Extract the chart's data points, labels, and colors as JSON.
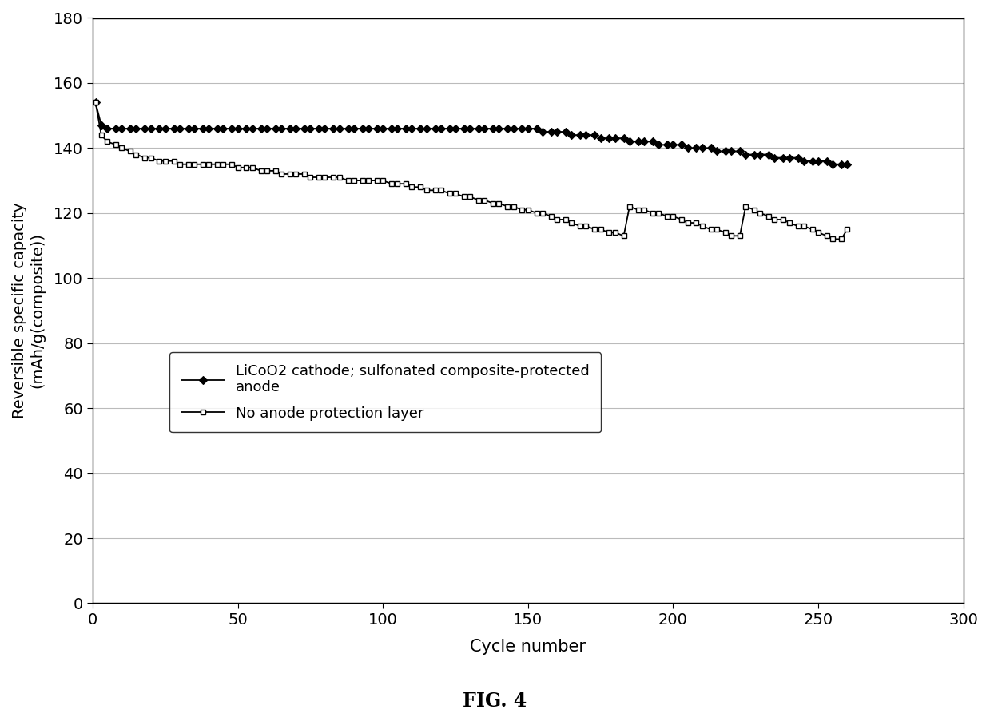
{
  "title": "FIG. 4",
  "xlabel": "Cycle number",
  "ylabel": "Reversible specific capacity\n(mAh/g(composite))",
  "xlim": [
    0,
    300
  ],
  "ylim": [
    0,
    180
  ],
  "xticks": [
    0,
    50,
    100,
    150,
    200,
    250,
    300
  ],
  "yticks": [
    0,
    20,
    40,
    60,
    80,
    100,
    120,
    140,
    160,
    180
  ],
  "series1_label": "LiCoO2 cathode; sulfonated composite-protected\nanode",
  "series2_label": "No anode protection layer",
  "series1_x": [
    1,
    3,
    5,
    8,
    10,
    13,
    15,
    18,
    20,
    23,
    25,
    28,
    30,
    33,
    35,
    38,
    40,
    43,
    45,
    48,
    50,
    53,
    55,
    58,
    60,
    63,
    65,
    68,
    70,
    73,
    75,
    78,
    80,
    83,
    85,
    88,
    90,
    93,
    95,
    98,
    100,
    103,
    105,
    108,
    110,
    113,
    115,
    118,
    120,
    123,
    125,
    128,
    130,
    133,
    135,
    138,
    140,
    143,
    145,
    148,
    150,
    153,
    155,
    158,
    160,
    163,
    165,
    168,
    170,
    173,
    175,
    178,
    180,
    183,
    185,
    188,
    190,
    193,
    195,
    198,
    200,
    203,
    205,
    208,
    210,
    213,
    215,
    218,
    220,
    223,
    225,
    228,
    230,
    233,
    235,
    238,
    240,
    243,
    245,
    248,
    250,
    253,
    255,
    258,
    260
  ],
  "series1_y": [
    154,
    147,
    146,
    146,
    146,
    146,
    146,
    146,
    146,
    146,
    146,
    146,
    146,
    146,
    146,
    146,
    146,
    146,
    146,
    146,
    146,
    146,
    146,
    146,
    146,
    146,
    146,
    146,
    146,
    146,
    146,
    146,
    146,
    146,
    146,
    146,
    146,
    146,
    146,
    146,
    146,
    146,
    146,
    146,
    146,
    146,
    146,
    146,
    146,
    146,
    146,
    146,
    146,
    146,
    146,
    146,
    146,
    146,
    146,
    146,
    146,
    146,
    145,
    145,
    145,
    145,
    144,
    144,
    144,
    144,
    143,
    143,
    143,
    143,
    142,
    142,
    142,
    142,
    141,
    141,
    141,
    141,
    140,
    140,
    140,
    140,
    139,
    139,
    139,
    139,
    138,
    138,
    138,
    138,
    137,
    137,
    137,
    137,
    136,
    136,
    136,
    136,
    135,
    135,
    135
  ],
  "series2_x": [
    1,
    3,
    5,
    8,
    10,
    13,
    15,
    18,
    20,
    23,
    25,
    28,
    30,
    33,
    35,
    38,
    40,
    43,
    45,
    48,
    50,
    53,
    55,
    58,
    60,
    63,
    65,
    68,
    70,
    73,
    75,
    78,
    80,
    83,
    85,
    88,
    90,
    93,
    95,
    98,
    100,
    103,
    105,
    108,
    110,
    113,
    115,
    118,
    120,
    123,
    125,
    128,
    130,
    133,
    135,
    138,
    140,
    143,
    145,
    148,
    150,
    153,
    155,
    158,
    160,
    163,
    165,
    168,
    170,
    173,
    175,
    178,
    180,
    183,
    185,
    188,
    190,
    193,
    195,
    198,
    200,
    203,
    205,
    208,
    210,
    213,
    215,
    218,
    220,
    223,
    225,
    228,
    230,
    233,
    235,
    238,
    240,
    243,
    245,
    248,
    250,
    253,
    255,
    258,
    260
  ],
  "series2_y": [
    154,
    144,
    142,
    141,
    140,
    139,
    138,
    137,
    137,
    136,
    136,
    136,
    135,
    135,
    135,
    135,
    135,
    135,
    135,
    135,
    134,
    134,
    134,
    133,
    133,
    133,
    132,
    132,
    132,
    132,
    131,
    131,
    131,
    131,
    131,
    130,
    130,
    130,
    130,
    130,
    130,
    129,
    129,
    129,
    128,
    128,
    127,
    127,
    127,
    126,
    126,
    125,
    125,
    124,
    124,
    123,
    123,
    122,
    122,
    121,
    121,
    120,
    120,
    119,
    118,
    118,
    117,
    116,
    116,
    115,
    115,
    114,
    114,
    113,
    122,
    121,
    121,
    120,
    120,
    119,
    119,
    118,
    117,
    117,
    116,
    115,
    115,
    114,
    113,
    113,
    122,
    121,
    120,
    119,
    118,
    118,
    117,
    116,
    116,
    115,
    114,
    113,
    112,
    112,
    115
  ],
  "background_color": "#ffffff",
  "line_color": "#000000",
  "grid_color": "#bbbbbb",
  "fig_width": 12.39,
  "fig_height": 8.98,
  "dpi": 100
}
